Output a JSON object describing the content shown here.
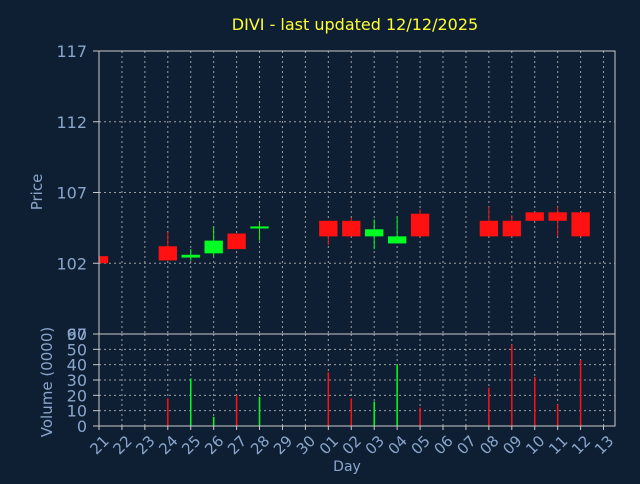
{
  "colors": {
    "background": "#0f1f33",
    "title": "#ffff33",
    "axis_text": "#8aa6cc",
    "frame": "#c8c8c8",
    "grid": "#c8c8c8",
    "up": "#00ff22",
    "down": "#ff1111"
  },
  "chart_data": [
    {
      "type": "candlestick",
      "title": "DIVI - last updated 12/12/2025",
      "ylabel": "Price",
      "ylim": [
        97,
        117
      ],
      "yticks": [
        "117",
        "112",
        "107",
        "102",
        "97"
      ],
      "grid": true,
      "candles": [
        {
          "day": "21",
          "open": 102.5,
          "high": 102.9,
          "low": 102.0,
          "close": 102.0
        },
        {
          "day": "24",
          "open": 103.2,
          "high": 104.2,
          "low": 102.2,
          "close": 102.2
        },
        {
          "day": "25",
          "open": 102.4,
          "high": 103.0,
          "low": 102.2,
          "close": 102.6
        },
        {
          "day": "26",
          "open": 102.7,
          "high": 104.6,
          "low": 102.5,
          "close": 103.6
        },
        {
          "day": "27",
          "open": 104.1,
          "high": 104.1,
          "low": 103.0,
          "close": 103.0
        },
        {
          "day": "28",
          "open": 104.5,
          "high": 104.9,
          "low": 103.6,
          "close": 104.6
        },
        {
          "day": "01",
          "open": 105.0,
          "high": 105.0,
          "low": 103.3,
          "close": 103.9
        },
        {
          "day": "02",
          "open": 105.0,
          "high": 105.2,
          "low": 103.9,
          "close": 103.9
        },
        {
          "day": "03",
          "open": 103.9,
          "high": 105.1,
          "low": 103.0,
          "close": 104.4
        },
        {
          "day": "04",
          "open": 103.4,
          "high": 105.3,
          "low": 103.4,
          "close": 103.9
        },
        {
          "day": "05",
          "open": 105.5,
          "high": 105.8,
          "low": 103.9,
          "close": 103.9
        },
        {
          "day": "08",
          "open": 105.0,
          "high": 106.0,
          "low": 103.9,
          "close": 103.9
        },
        {
          "day": "09",
          "open": 105.0,
          "high": 105.4,
          "low": 103.9,
          "close": 103.9
        },
        {
          "day": "10",
          "open": 105.6,
          "high": 105.6,
          "low": 105.0,
          "close": 105.0
        },
        {
          "day": "11",
          "open": 105.6,
          "high": 106.0,
          "low": 103.9,
          "close": 105.0
        },
        {
          "day": "12",
          "open": 105.6,
          "high": 105.6,
          "low": 103.9,
          "close": 103.9
        }
      ]
    },
    {
      "type": "bar",
      "ylabel": "Volume (0000)",
      "xlabel": "Day",
      "ylim": [
        0,
        60
      ],
      "yticks": [
        "60",
        "50",
        "40",
        "30",
        "20",
        "10",
        "0"
      ],
      "grid": true,
      "x_ticks": [
        "21",
        "22",
        "23",
        "24",
        "25",
        "26",
        "27",
        "28",
        "29",
        "30",
        "01",
        "02",
        "03",
        "04",
        "05",
        "06",
        "07",
        "08",
        "09",
        "10",
        "11",
        "12",
        "13"
      ],
      "volumes": [
        {
          "day": "24",
          "value": 18,
          "direction": "down"
        },
        {
          "day": "25",
          "value": 31,
          "direction": "up"
        },
        {
          "day": "26",
          "value": 6,
          "direction": "up"
        },
        {
          "day": "27",
          "value": 20,
          "direction": "down"
        },
        {
          "day": "28",
          "value": 19,
          "direction": "up"
        },
        {
          "day": "01",
          "value": 35,
          "direction": "down"
        },
        {
          "day": "02",
          "value": 18,
          "direction": "down"
        },
        {
          "day": "03",
          "value": 16,
          "direction": "up"
        },
        {
          "day": "04",
          "value": 40,
          "direction": "up"
        },
        {
          "day": "05",
          "value": 12,
          "direction": "down"
        },
        {
          "day": "08",
          "value": 25,
          "direction": "down"
        },
        {
          "day": "09",
          "value": 53,
          "direction": "down"
        },
        {
          "day": "10",
          "value": 32,
          "direction": "down"
        },
        {
          "day": "11",
          "value": 14,
          "direction": "down"
        },
        {
          "day": "12",
          "value": 43,
          "direction": "down"
        }
      ]
    }
  ]
}
